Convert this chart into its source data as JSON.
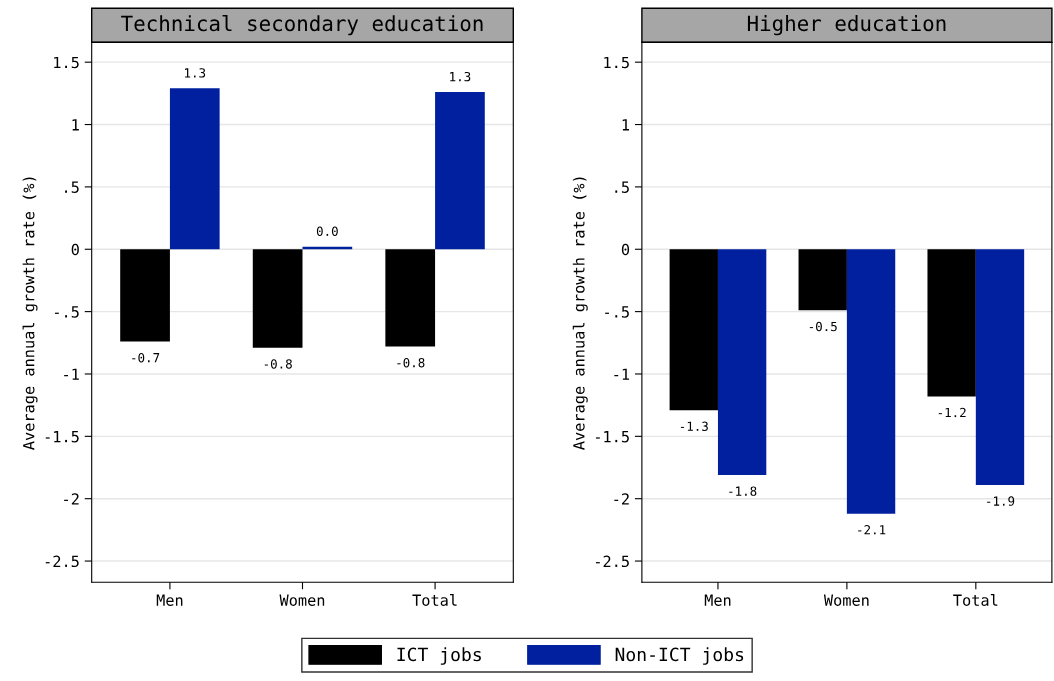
{
  "chart_data": [
    {
      "type": "bar",
      "title": "Technical secondary education",
      "ylabel": "Average annual growth rate (%)",
      "categories": [
        "Men",
        "Women",
        "Total"
      ],
      "series": [
        {
          "name": "ICT jobs",
          "color": "#000000",
          "values": [
            -0.74,
            -0.79,
            -0.78
          ],
          "value_labels": [
            "-0.7",
            "-0.8",
            "-0.8"
          ]
        },
        {
          "name": "Non-ICT jobs",
          "color": "#00209f",
          "values": [
            1.29,
            0.02,
            1.26
          ],
          "value_labels": [
            "1.3",
            "0.0",
            "1.3"
          ]
        }
      ],
      "ylim": [
        -2.67,
        1.66
      ],
      "yticks": [
        {
          "value": -2.5,
          "label": "-2.5"
        },
        {
          "value": -2,
          "label": "-2"
        },
        {
          "value": -1.5,
          "label": "-1.5"
        },
        {
          "value": -1,
          "label": "-1"
        },
        {
          "value": -0.5,
          "label": "-.5"
        },
        {
          "value": 0,
          "label": "0"
        },
        {
          "value": 0.5,
          "label": ".5"
        },
        {
          "value": 1,
          "label": "1"
        },
        {
          "value": 1.5,
          "label": "1.5"
        }
      ],
      "grid": "y",
      "legend": "bottom"
    },
    {
      "type": "bar",
      "title": "Higher education",
      "ylabel": "Average annual growth rate (%)",
      "categories": [
        "Men",
        "Women",
        "Total"
      ],
      "series": [
        {
          "color": "#000000",
          "values": [
            -1.29,
            -0.49,
            -1.18
          ],
          "value_labels": [
            "-1.3",
            "-0.5",
            "-1.2"
          ]
        },
        {
          "color": "#00209f",
          "values": [
            -1.81,
            -2.12,
            -1.89
          ],
          "value_labels": [
            "-1.8",
            "-2.1",
            "-1.9"
          ]
        }
      ],
      "ylim": [
        -2.67,
        1.66
      ],
      "yticks": [
        {
          "value": -2.5,
          "label": "-2.5"
        },
        {
          "value": -2,
          "label": "-2"
        },
        {
          "value": -1.5,
          "label": "-1.5"
        },
        {
          "value": -1,
          "label": "-1"
        },
        {
          "value": -0.5,
          "label": "-.5"
        },
        {
          "value": 0,
          "label": "0"
        },
        {
          "value": 0.5,
          "label": ".5"
        },
        {
          "value": 1,
          "label": "1"
        },
        {
          "value": 1.5,
          "label": "1.5"
        }
      ],
      "grid": "y"
    }
  ]
}
